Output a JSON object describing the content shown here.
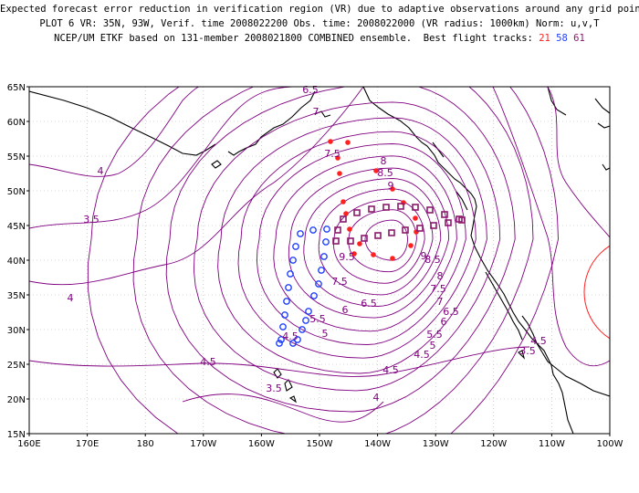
{
  "header": {
    "line1": "Expected forecast error reduction in verification region (VR) due to adaptive observations around any grid point.",
    "line2": "PLOT 6 VR: 35N, 93W, Verif. time 2008022200 Obs. time: 2008022000 (VR radius: 1000km) Norm: u,v,T",
    "line3_prefix": "NCEP/UM ETKF based on 131-member 2008021800 COMBINED ensemble.  Best flight tracks: ",
    "track_ids": [
      "21",
      "58",
      "61"
    ],
    "track_colors": [
      "#ff2020",
      "#2040ff",
      "#8b1a6b"
    ]
  },
  "map": {
    "lon_labels": [
      "160E",
      "170E",
      "180",
      "170W",
      "160W",
      "150W",
      "140W",
      "130W",
      "120W",
      "110W",
      "100W"
    ],
    "lat_labels": [
      "15N",
      "20N",
      "25N",
      "30N",
      "35N",
      "40N",
      "45N",
      "50N",
      "55N",
      "60N",
      "65N"
    ],
    "contour_color": "#800080",
    "contour_labels": [
      "6.5",
      "7",
      "7.5",
      "8",
      "8.5",
      "9",
      "4",
      "3.5",
      "4",
      "4.5",
      "4.5",
      "3.5",
      "4",
      "4.5",
      "5",
      "5.5",
      "6",
      "6.5",
      "7",
      "7.5",
      "8",
      "8.5",
      "9",
      "9.5",
      "7.5",
      "6.5",
      "6",
      "5.5",
      "5",
      "4.5",
      "3.5",
      "4.5"
    ],
    "verification_circle": "red"
  }
}
